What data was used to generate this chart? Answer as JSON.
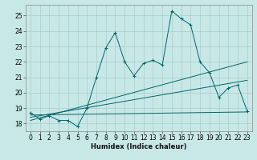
{
  "xlabel": "Humidex (Indice chaleur)",
  "ylabel": "",
  "bg_color": "#c8e8e8",
  "line_color": "#006666",
  "xlim": [
    -0.5,
    23.5
  ],
  "ylim": [
    17.5,
    25.7
  ],
  "yticks": [
    18,
    19,
    20,
    21,
    22,
    23,
    24,
    25
  ],
  "xticks": [
    0,
    1,
    2,
    3,
    4,
    5,
    6,
    7,
    8,
    9,
    10,
    11,
    12,
    13,
    14,
    15,
    16,
    17,
    18,
    19,
    20,
    21,
    22,
    23
  ],
  "main_x": [
    0,
    1,
    2,
    3,
    4,
    5,
    6,
    7,
    8,
    9,
    10,
    11,
    12,
    13,
    14,
    15,
    16,
    17,
    18,
    19,
    20,
    21,
    22,
    23
  ],
  "main_y": [
    18.7,
    18.3,
    18.5,
    18.2,
    18.2,
    17.8,
    19.0,
    21.0,
    22.9,
    23.9,
    22.0,
    21.1,
    21.9,
    22.1,
    21.8,
    25.3,
    24.8,
    24.4,
    22.0,
    21.3,
    19.7,
    20.3,
    20.5,
    18.8
  ],
  "trend1_x": [
    0,
    23
  ],
  "trend1_y": [
    18.55,
    18.75
  ],
  "trend2_x": [
    0,
    23
  ],
  "trend2_y": [
    18.4,
    20.8
  ],
  "trend3_x": [
    0,
    23
  ],
  "trend3_y": [
    18.2,
    22.0
  ],
  "grid_color": "#aacccc",
  "axis_fontsize": 6,
  "tick_fontsize": 5.5
}
